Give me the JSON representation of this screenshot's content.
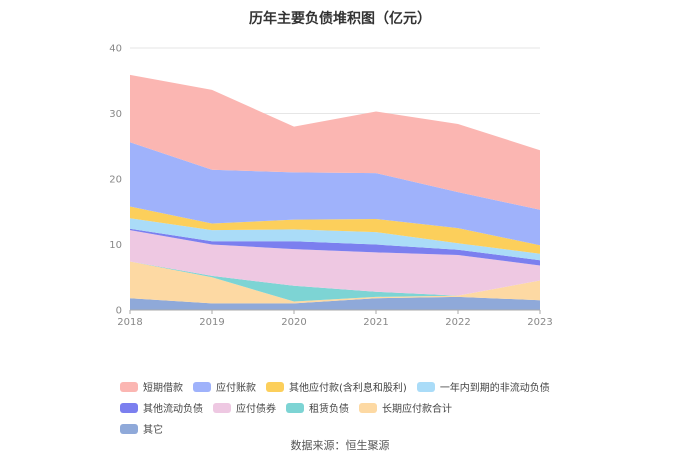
{
  "chart_data": {
    "type": "area",
    "title": "历年主要负债堆积图（亿元）",
    "categories": [
      "2018",
      "2019",
      "2020",
      "2021",
      "2022",
      "2023"
    ],
    "ylim": [
      0,
      40
    ],
    "yticks": [
      "0",
      "10",
      "20",
      "30",
      "40"
    ],
    "grid": true,
    "stacked": true,
    "legend_position": "bottom",
    "series": [
      {
        "name": "其它",
        "color": "#8fa9d9",
        "values": [
          1.8,
          1.0,
          1.0,
          1.8,
          2.0,
          1.5
        ]
      },
      {
        "name": "长期应付款合计",
        "color": "#fdd9a3",
        "values": [
          5.6,
          4.0,
          0.3,
          0.2,
          0.2,
          3.0
        ]
      },
      {
        "name": "租赁负债",
        "color": "#7dd4d4",
        "values": [
          0.0,
          0.2,
          2.4,
          0.8,
          0.0,
          0.0
        ]
      },
      {
        "name": "应付债券",
        "color": "#eec8e2",
        "values": [
          4.8,
          4.8,
          5.6,
          6.0,
          6.2,
          2.3
        ]
      },
      {
        "name": "其他流动负债",
        "color": "#7b7fef",
        "values": [
          0.2,
          0.5,
          1.2,
          1.2,
          0.8,
          0.8
        ]
      },
      {
        "name": "一年内到期的非流动负债",
        "color": "#aadcf8",
        "values": [
          1.6,
          1.7,
          1.8,
          1.9,
          1.0,
          1.0
        ]
      },
      {
        "name": "其他应付款(含利息和股利)",
        "color": "#fccf5b",
        "values": [
          1.8,
          1.0,
          1.5,
          2.0,
          2.3,
          1.3
        ]
      },
      {
        "name": "应付账款",
        "color": "#9fb2fb",
        "values": [
          9.8,
          8.2,
          7.2,
          7.0,
          5.5,
          5.4
        ]
      },
      {
        "name": "短期借款",
        "color": "#fbb6b2",
        "values": [
          10.3,
          12.2,
          7.0,
          9.4,
          10.4,
          9.1
        ]
      }
    ],
    "legend_order": [
      "短期借款",
      "应付账款",
      "其他应付款(含利息和股利)",
      "一年内到期的非流动负债",
      "其他流动负债",
      "应付债券",
      "租赁负债",
      "长期应付款合计",
      "其它"
    ]
  },
  "source_text": "数据来源：恒生聚源"
}
